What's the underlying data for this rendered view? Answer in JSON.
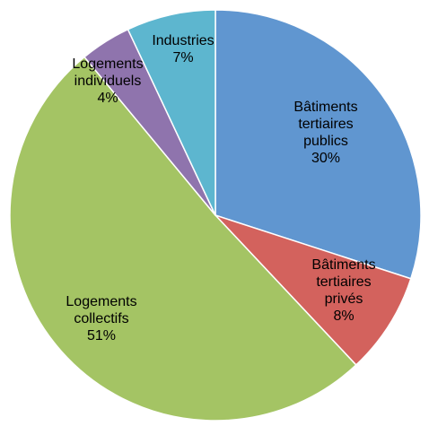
{
  "chart_data": {
    "type": "pie",
    "title": "",
    "start_angle_deg": 0,
    "direction": "clockwise",
    "slices": [
      {
        "label_lines": [
          "Bâtiments",
          "tertiaires",
          "publics"
        ],
        "percent_label": "30%",
        "value": 30,
        "color": "#6096d0"
      },
      {
        "label_lines": [
          "Bâtiments",
          "tertiaires",
          "privés"
        ],
        "percent_label": "8%",
        "value": 8,
        "color": "#d3625d"
      },
      {
        "label_lines": [
          "Logements",
          "collectifs"
        ],
        "percent_label": "51%",
        "value": 51,
        "color": "#a4c464"
      },
      {
        "label_lines": [
          "Logements",
          "individuels"
        ],
        "percent_label": "4%",
        "value": 4,
        "color": "#8f74ad"
      },
      {
        "label_lines": [
          "Industries"
        ],
        "percent_label": "7%",
        "value": 7,
        "color": "#5db6cf"
      }
    ]
  }
}
